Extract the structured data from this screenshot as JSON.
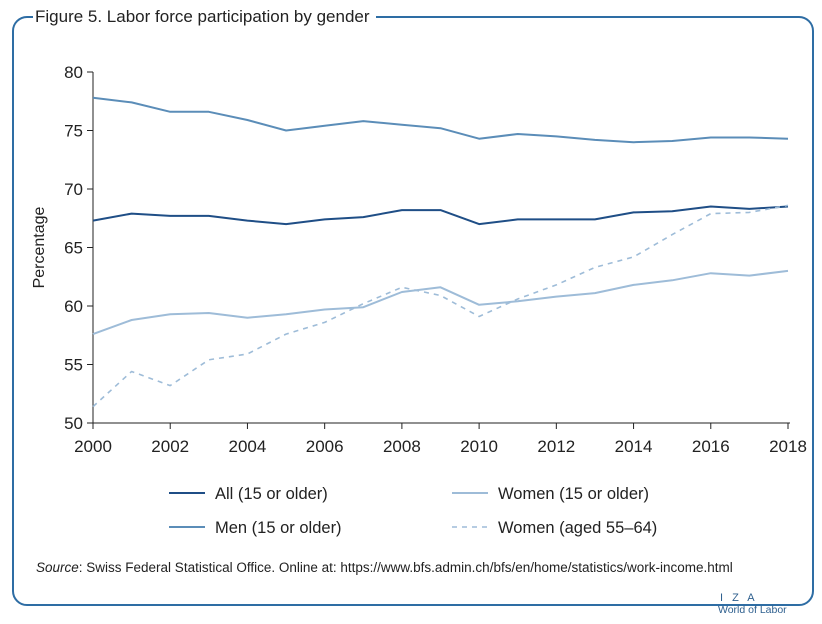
{
  "title": "Figure 5. Labor force participation by gender",
  "source": {
    "label": "Source",
    "text": ": Swiss Federal Statistical Office. Online at: https://www.bfs.admin.ch/bfs/en/home/statistics/work-income.html"
  },
  "logo": {
    "line1": "I Z A",
    "line2": "World of Labor"
  },
  "colors": {
    "frame": "#2e6da4",
    "all": "#1f4e86",
    "men": "#5b8db8",
    "women": "#9ebcd8",
    "women_55_64": "#9ebcd8"
  },
  "chart_data": {
    "type": "line",
    "title": "Figure 5. Labor force participation by gender",
    "xlabel": "",
    "ylabel": "Percentage",
    "xlim": [
      2000,
      2018
    ],
    "ylim": [
      50,
      80
    ],
    "x_ticks": [
      2000,
      2002,
      2004,
      2006,
      2008,
      2010,
      2012,
      2014,
      2016,
      2018
    ],
    "y_ticks": [
      50,
      55,
      60,
      65,
      70,
      75,
      80
    ],
    "grid": false,
    "legend_position": "bottom",
    "x": [
      2000,
      2001,
      2002,
      2003,
      2004,
      2005,
      2006,
      2007,
      2008,
      2009,
      2010,
      2011,
      2012,
      2013,
      2014,
      2015,
      2016,
      2017,
      2018
    ],
    "series": [
      {
        "name": "All (15 or older)",
        "key": "all",
        "dashed": false,
        "values": [
          67.3,
          67.9,
          67.7,
          67.7,
          67.3,
          67.0,
          67.4,
          67.6,
          68.2,
          68.2,
          67.0,
          67.4,
          67.4,
          67.4,
          68.0,
          68.1,
          68.5,
          68.3,
          68.5
        ]
      },
      {
        "name": "Men (15 or older)",
        "key": "men",
        "dashed": false,
        "values": [
          77.8,
          77.4,
          76.6,
          76.6,
          75.9,
          75.0,
          75.4,
          75.8,
          75.5,
          75.2,
          74.3,
          74.7,
          74.5,
          74.2,
          74.0,
          74.1,
          74.4,
          74.4,
          74.3
        ]
      },
      {
        "name": "Women (15 or older)",
        "key": "women",
        "dashed": false,
        "values": [
          57.6,
          58.8,
          59.3,
          59.4,
          59.0,
          59.3,
          59.7,
          59.9,
          61.2,
          61.6,
          60.1,
          60.4,
          60.8,
          61.1,
          61.8,
          62.2,
          62.8,
          62.6,
          63.0
        ]
      },
      {
        "name": "Women (aged 55–64)",
        "key": "women_55_64",
        "dashed": true,
        "values": [
          51.4,
          54.4,
          53.2,
          55.4,
          55.9,
          57.6,
          58.6,
          60.2,
          61.6,
          60.9,
          59.1,
          60.6,
          61.8,
          63.3,
          64.2,
          66.1,
          67.9,
          68.0,
          68.6
        ]
      }
    ],
    "legend": [
      {
        "name": "All (15 or older)",
        "key": "all",
        "dashed": false
      },
      {
        "name": "Women (15 or older)",
        "key": "women",
        "dashed": false
      },
      {
        "name": "Men (15 or older)",
        "key": "men",
        "dashed": false
      },
      {
        "name": "Women (aged 55–64)",
        "key": "women_55_64",
        "dashed": true
      }
    ]
  }
}
